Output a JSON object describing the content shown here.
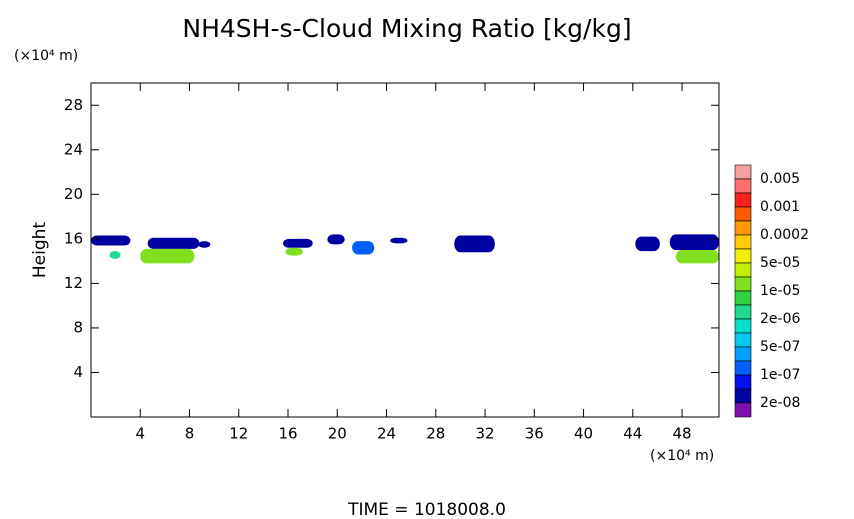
{
  "chart_data": {
    "type": "field",
    "title": "NH4SH-s-Cloud Mixing Ratio [kg/kg]",
    "y_unit": "(×10⁴ m)",
    "x_unit": "(×10⁴ m)",
    "y_label": "Height",
    "footer": "TIME = 1018008.0",
    "xlim": [
      0,
      51
    ],
    "xticks": [
      4,
      8,
      12,
      16,
      20,
      24,
      28,
      32,
      36,
      40,
      44,
      48
    ],
    "ylim": [
      0,
      30
    ],
    "yticks": [
      4,
      8,
      12,
      16,
      20,
      24,
      28
    ],
    "colorbar": {
      "colors": [
        "#f4a0a0",
        "#ff7070",
        "#ff2020",
        "#ff5a00",
        "#ff9a00",
        "#ffcc00",
        "#f0f000",
        "#c0f000",
        "#80e020",
        "#30d040",
        "#20d890",
        "#00e0c8",
        "#00c8f0",
        "#00a0ff",
        "#0060ff",
        "#0010f0",
        "#0000a0",
        "#8010b0"
      ],
      "levels": [
        0.005,
        0.001,
        0.0002,
        {
          "value": 5e-05,
          "label": "5e-05"
        },
        {
          "value": 1e-05,
          "label": "1e-05"
        },
        {
          "value": 2e-06,
          "label": "2e-06"
        },
        {
          "value": 5e-07,
          "label": "5e-07"
        },
        {
          "value": 1e-07,
          "label": "1e-07"
        },
        {
          "value": 2e-08,
          "label": "2e-08"
        }
      ]
    },
    "patches": [
      {
        "x": [
          0,
          3.2
        ],
        "y": [
          15.4,
          16.3
        ],
        "value": 3e-08
      },
      {
        "x": [
          1.5,
          2.4
        ],
        "y": [
          14.2,
          14.9
        ],
        "value": 3e-06
      },
      {
        "x": [
          4.6,
          8.8
        ],
        "y": [
          15.1,
          16.1
        ],
        "value": 3e-08
      },
      {
        "x": [
          4,
          8.4
        ],
        "y": [
          13.8,
          15.1
        ],
        "value": 3e-05
      },
      {
        "x": [
          8.7,
          9.7
        ],
        "y": [
          15.2,
          15.8
        ],
        "value": 3e-08
      },
      {
        "x": [
          15.6,
          18
        ],
        "y": [
          15.2,
          16
        ],
        "value": 3e-08
      },
      {
        "x": [
          15.8,
          17.2
        ],
        "y": [
          14.5,
          15.2
        ],
        "value": 3e-05
      },
      {
        "x": [
          19.2,
          20.6
        ],
        "y": [
          15.5,
          16.4
        ],
        "value": 3e-08
      },
      {
        "x": [
          21.2,
          23
        ],
        "y": [
          14.6,
          15.8
        ],
        "value": 3e-07
      },
      {
        "x": [
          24.3,
          25.7
        ],
        "y": [
          15.6,
          16.1
        ],
        "value": 3e-08
      },
      {
        "x": [
          29.5,
          32.8
        ],
        "y": [
          14.8,
          16.3
        ],
        "value": 3e-08
      },
      {
        "x": [
          44.2,
          46.2
        ],
        "y": [
          14.9,
          16.2
        ],
        "value": 3e-08
      },
      {
        "x": [
          47,
          51
        ],
        "y": [
          15,
          16.4
        ],
        "value": 3e-08
      },
      {
        "x": [
          47.5,
          51
        ],
        "y": [
          13.8,
          15
        ],
        "value": 3e-05
      }
    ]
  }
}
